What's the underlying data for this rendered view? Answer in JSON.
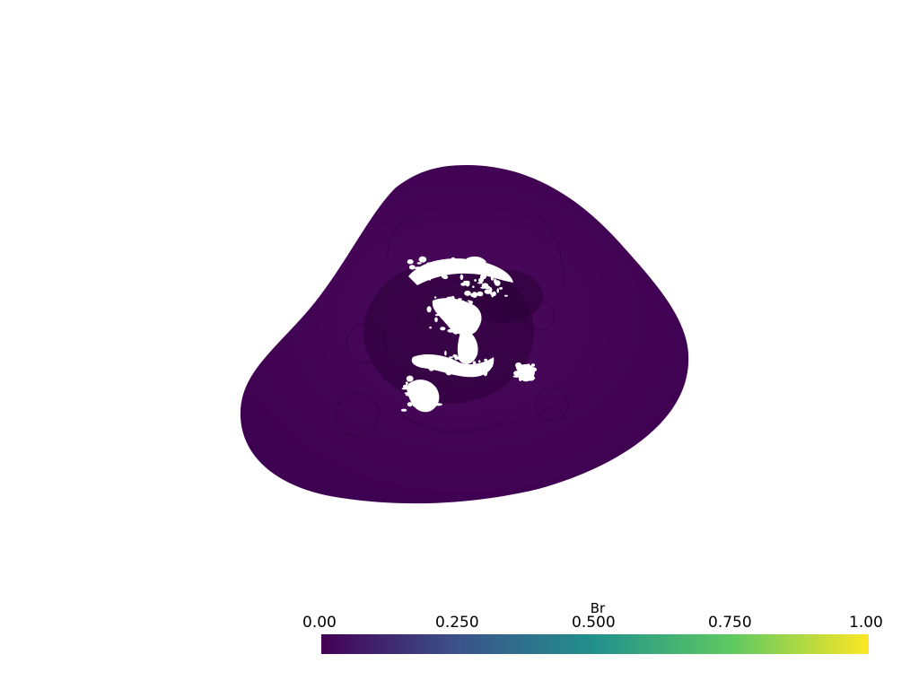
{
  "scene": {
    "scalar_name": "Br",
    "surface_color": "#440154",
    "hole_color": "#ffffff",
    "background": "#ffffff"
  },
  "colorbar": {
    "title": "Br",
    "colormap": "viridis",
    "range": [
      0.0,
      1.0
    ],
    "tick_labels": [
      "0.00",
      "0.250",
      "0.500",
      "0.750",
      "1.00"
    ],
    "stops": [
      "#440154",
      "#3b528b",
      "#21918c",
      "#5ec962",
      "#fde725"
    ]
  }
}
